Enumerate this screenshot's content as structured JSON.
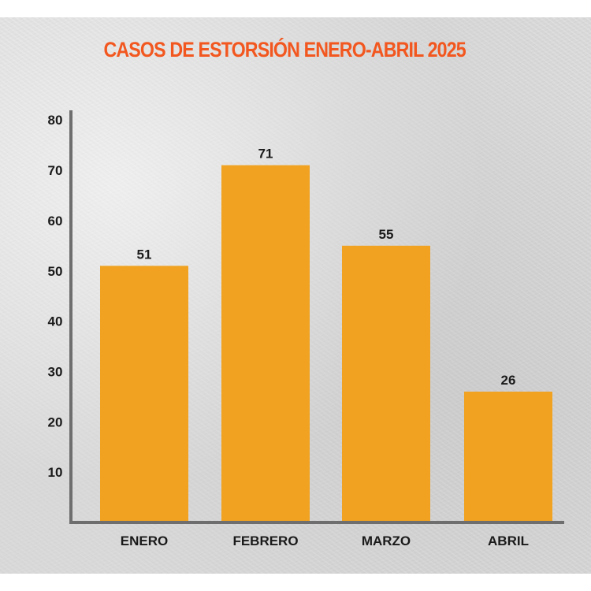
{
  "chart_data": {
    "type": "bar",
    "title": "CASOS DE ESTORSIÓN ENERO-ABRIL 2025",
    "xlabel": "",
    "ylabel": "",
    "categories": [
      "ENERO",
      "FEBRERO",
      "MARZO",
      "ABRIL"
    ],
    "values": [
      51,
      71,
      55,
      26
    ],
    "value_labels": [
      "51",
      "71",
      "55",
      "26"
    ],
    "yticks": [
      10,
      20,
      30,
      40,
      50,
      60,
      70,
      80
    ],
    "ytick_labels": [
      "10",
      "20",
      "30",
      "40",
      "50",
      "60",
      "70",
      "80"
    ],
    "ylim": [
      0,
      80
    ],
    "grid": false,
    "legend": "none"
  },
  "colors": {
    "title": "#f2571f",
    "bar": "#f0a220",
    "axis": "#6e6e6e",
    "text": "#1a1a1a"
  }
}
